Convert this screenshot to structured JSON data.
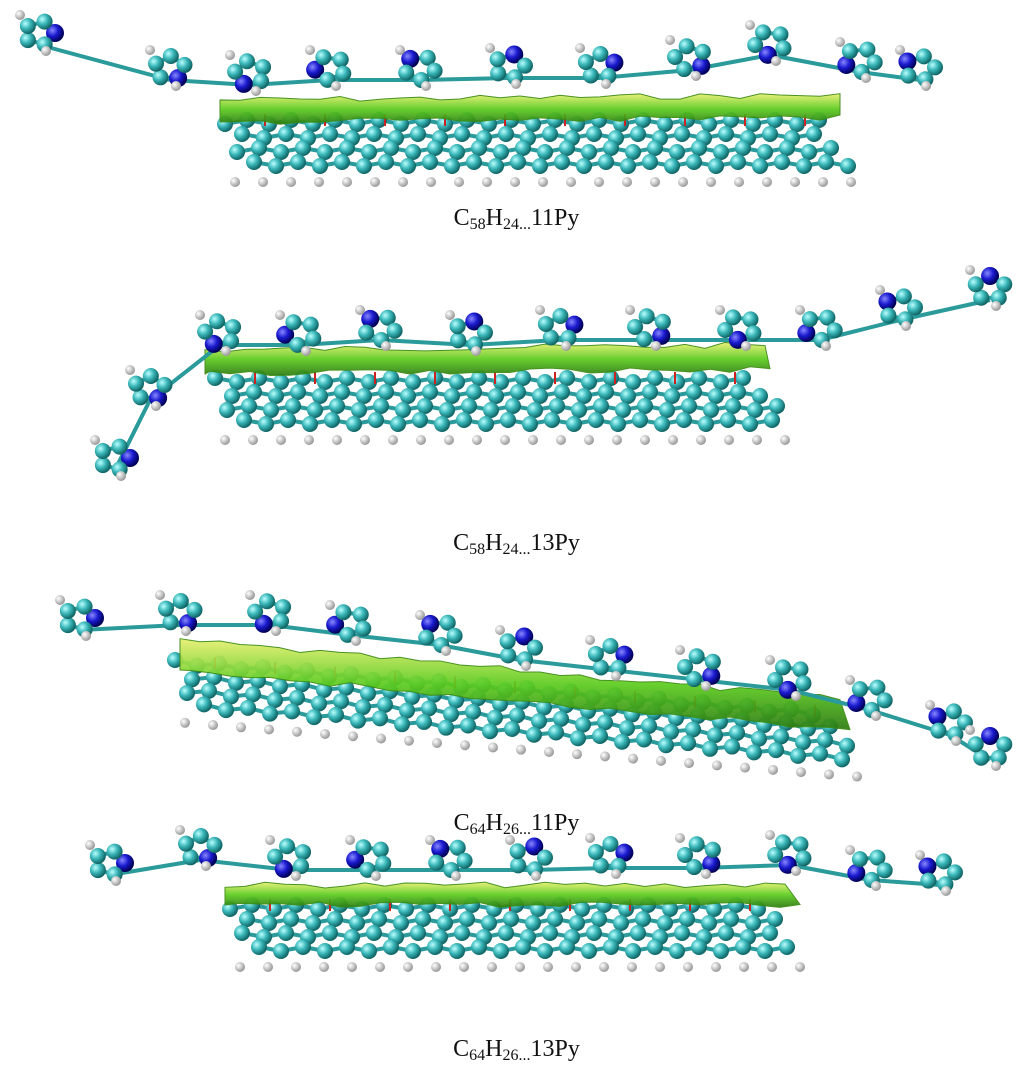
{
  "panels": [
    {
      "caption": {
        "c": "C",
        "n1": "58",
        "h": "H",
        "n2": "24...",
        "py": "11Py"
      }
    },
    {
      "caption": {
        "c": "C",
        "n1": "58",
        "h": "H",
        "n2": "24...",
        "py": "13Py"
      }
    },
    {
      "caption": {
        "c": "C",
        "n1": "64",
        "h": "H",
        "n2": "26...",
        "py": "11Py"
      }
    },
    {
      "caption": {
        "c": "C",
        "n1": "64",
        "h": "H",
        "n2": "26...",
        "py": "13Py"
      }
    }
  ]
}
